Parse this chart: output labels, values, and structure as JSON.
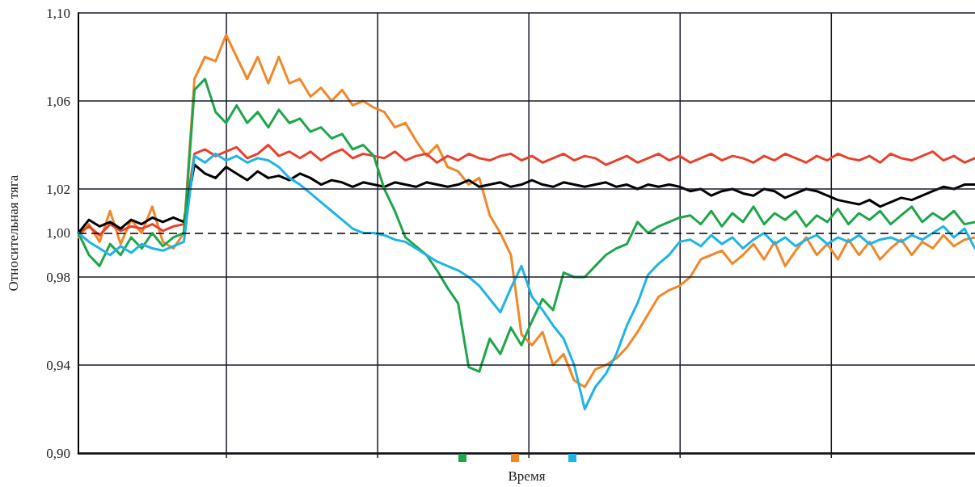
{
  "chart_data": {
    "type": "line",
    "xlabel": "Время",
    "ylabel": "Относительная тяга",
    "categories": [
      null,
      null,
      null,
      null,
      null,
      null,
      null,
      null,
      null,
      null,
      null,
      null,
      null,
      null,
      null,
      null,
      null,
      null,
      null,
      null,
      null,
      null,
      null,
      null,
      null,
      null,
      null,
      null,
      null,
      null,
      null,
      null,
      null,
      null,
      null,
      null,
      null,
      null,
      null,
      null,
      null,
      null,
      null,
      null,
      null,
      null,
      null,
      null,
      null,
      null,
      null,
      null,
      null,
      null,
      null,
      null,
      null,
      null,
      null,
      null,
      null,
      null,
      null,
      null,
      null,
      null,
      null,
      null,
      null,
      null,
      null,
      null,
      null,
      null,
      null,
      null,
      null,
      null,
      null,
      null,
      null,
      null,
      null,
      null,
      null,
      null
    ],
    "ylim": [
      0.9,
      1.1
    ],
    "yticks": [
      {
        "value": 0.9,
        "label": "0,90"
      },
      {
        "value": 0.94,
        "label": "0,94"
      },
      {
        "value": 0.98,
        "label": "0,98"
      },
      {
        "value": 1.0,
        "label": "1,00"
      },
      {
        "value": 1.02,
        "label": "1,02"
      },
      {
        "value": 1.06,
        "label": "1,06"
      },
      {
        "value": 1.1,
        "label": "1,10"
      }
    ],
    "grid": true,
    "tick_labels": "y",
    "marker": "none",
    "line_style": "solid",
    "ref_lines": [
      {
        "axis": "y",
        "value": 1.0,
        "line_style": "dashed",
        "color": "#000000"
      }
    ],
    "series": [
      {
        "color": "#f0882a",
        "values": [
          0.998,
          1.004,
          0.996,
          1.01,
          0.995,
          1.006,
          1.0,
          1.012,
          0.996,
          0.993,
          1.0,
          1.07,
          1.08,
          1.078,
          1.09,
          1.08,
          1.07,
          1.08,
          1.068,
          1.08,
          1.068,
          1.07,
          1.062,
          1.066,
          1.06,
          1.065,
          1.058,
          1.06,
          1.057,
          1.055,
          1.048,
          1.05,
          1.042,
          1.035,
          1.04,
          1.03,
          1.028,
          1.022,
          1.025,
          1.008,
          1.0,
          0.99,
          0.954,
          0.949,
          0.955,
          0.94,
          0.945,
          0.933,
          0.93,
          0.938,
          0.94,
          0.943,
          0.948,
          0.955,
          0.963,
          0.971,
          0.974,
          0.976,
          0.98,
          0.988,
          0.99,
          0.992,
          0.986,
          0.99,
          0.995,
          0.988,
          0.996,
          0.985,
          0.992,
          0.998,
          0.99,
          0.995,
          0.988,
          0.997,
          0.99,
          0.996,
          0.988,
          0.993,
          0.997,
          0.99,
          0.996,
          0.993,
          0.999,
          0.994,
          0.997,
          0.998
        ]
      },
      {
        "color": "#e8412c",
        "values": [
          1.0,
          1.003,
          0.999,
          1.004,
          1.001,
          1.003,
          1.002,
          1.004,
          1.001,
          1.003,
          1.004,
          1.036,
          1.038,
          1.035,
          1.037,
          1.039,
          1.034,
          1.036,
          1.04,
          1.035,
          1.037,
          1.034,
          1.037,
          1.033,
          1.036,
          1.038,
          1.034,
          1.036,
          1.035,
          1.034,
          1.037,
          1.033,
          1.035,
          1.036,
          1.032,
          1.035,
          1.033,
          1.036,
          1.034,
          1.033,
          1.035,
          1.036,
          1.033,
          1.035,
          1.032,
          1.034,
          1.036,
          1.033,
          1.035,
          1.034,
          1.031,
          1.033,
          1.035,
          1.032,
          1.034,
          1.036,
          1.033,
          1.035,
          1.032,
          1.034,
          1.036,
          1.033,
          1.035,
          1.034,
          1.032,
          1.035,
          1.033,
          1.036,
          1.034,
          1.032,
          1.035,
          1.033,
          1.036,
          1.034,
          1.033,
          1.035,
          1.032,
          1.036,
          1.034,
          1.033,
          1.035,
          1.037,
          1.033,
          1.035,
          1.032,
          1.034
        ]
      },
      {
        "color": "#000000",
        "values": [
          1.0,
          1.006,
          1.003,
          1.005,
          1.002,
          1.006,
          1.004,
          1.007,
          1.005,
          1.007,
          1.005,
          1.031,
          1.027,
          1.025,
          1.03,
          1.027,
          1.024,
          1.028,
          1.025,
          1.026,
          1.024,
          1.027,
          1.025,
          1.022,
          1.024,
          1.023,
          1.021,
          1.023,
          1.022,
          1.021,
          1.023,
          1.022,
          1.021,
          1.023,
          1.022,
          1.021,
          1.022,
          1.024,
          1.021,
          1.022,
          1.023,
          1.021,
          1.022,
          1.024,
          1.022,
          1.021,
          1.023,
          1.022,
          1.021,
          1.022,
          1.023,
          1.021,
          1.022,
          1.02,
          1.022,
          1.021,
          1.022,
          1.021,
          1.019,
          1.02,
          1.017,
          1.019,
          1.02,
          1.018,
          1.017,
          1.02,
          1.019,
          1.016,
          1.018,
          1.02,
          1.019,
          1.017,
          1.015,
          1.014,
          1.013,
          1.015,
          1.012,
          1.014,
          1.016,
          1.015,
          1.017,
          1.019,
          1.021,
          1.02,
          1.022,
          1.022
        ]
      },
      {
        "color": "#1fa64a",
        "values": [
          1.0,
          0.99,
          0.985,
          0.995,
          0.99,
          0.998,
          0.993,
          1.0,
          0.994,
          0.998,
          1.0,
          1.065,
          1.07,
          1.055,
          1.05,
          1.058,
          1.05,
          1.055,
          1.048,
          1.056,
          1.05,
          1.052,
          1.046,
          1.048,
          1.043,
          1.045,
          1.038,
          1.04,
          1.035,
          1.02,
          1.01,
          0.998,
          0.994,
          0.99,
          0.983,
          0.975,
          0.968,
          0.939,
          0.937,
          0.952,
          0.945,
          0.957,
          0.949,
          0.96,
          0.97,
          0.965,
          0.982,
          0.98,
          0.98,
          0.985,
          0.99,
          0.993,
          0.995,
          1.005,
          1.0,
          1.003,
          1.005,
          1.007,
          1.008,
          1.004,
          1.01,
          1.003,
          1.009,
          1.005,
          1.012,
          1.004,
          1.009,
          1.006,
          1.01,
          1.003,
          1.008,
          1.005,
          1.011,
          1.004,
          1.009,
          1.006,
          1.01,
          1.004,
          1.008,
          1.012,
          1.005,
          1.009,
          1.006,
          1.01,
          1.004,
          1.005
        ]
      },
      {
        "color": "#1eb4e6",
        "values": [
          1.0,
          0.996,
          0.993,
          0.99,
          0.994,
          0.991,
          0.995,
          0.993,
          0.992,
          0.994,
          0.996,
          1.035,
          1.032,
          1.036,
          1.033,
          1.035,
          1.032,
          1.034,
          1.033,
          1.03,
          1.025,
          1.022,
          1.018,
          1.014,
          1.01,
          1.006,
          1.002,
          1.0,
          1.0,
          0.999,
          0.997,
          0.996,
          0.993,
          0.99,
          0.987,
          0.985,
          0.983,
          0.98,
          0.976,
          0.97,
          0.964,
          0.975,
          0.985,
          0.971,
          0.965,
          0.958,
          0.952,
          0.94,
          0.92,
          0.93,
          0.936,
          0.945,
          0.958,
          0.968,
          0.981,
          0.986,
          0.99,
          0.996,
          0.997,
          0.994,
          0.999,
          0.995,
          0.998,
          0.993,
          0.997,
          1.0,
          0.995,
          0.998,
          0.994,
          0.997,
          0.999,
          0.995,
          0.998,
          0.996,
          0.999,
          0.995,
          0.997,
          0.998,
          0.996,
          0.999,
          0.997,
          1.0,
          1.003,
          0.998,
          1.002,
          0.993
        ]
      }
    ]
  }
}
